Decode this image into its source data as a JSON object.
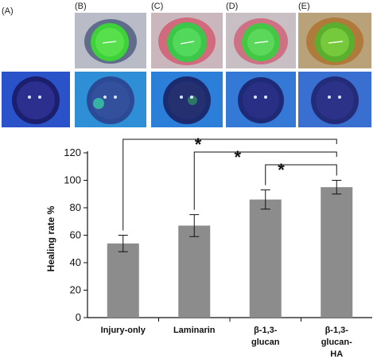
{
  "panels": [
    {
      "label": "(A)",
      "top_photo": false
    },
    {
      "label": "(B)",
      "top_photo": true
    },
    {
      "label": "(C)",
      "top_photo": true
    },
    {
      "label": "(D)",
      "top_photo": true
    },
    {
      "label": "(E)",
      "top_photo": true
    }
  ],
  "chart_data": {
    "type": "bar",
    "categories": [
      [
        "Injury-only"
      ],
      [
        "Laminarin"
      ],
      [
        "β-1,3-",
        "glucan"
      ],
      [
        "β-1,3-",
        "glucan-",
        "HA"
      ]
    ],
    "values": [
      54,
      67,
      86,
      95
    ],
    "errors": [
      6,
      8,
      7,
      5
    ],
    "ylabel": "Healing rate %",
    "ylim": [
      0,
      120
    ],
    "yticks": [
      0,
      20,
      40,
      60,
      80,
      100,
      120
    ],
    "bar_color": "#8c8c8c",
    "significance": [
      {
        "from": 0,
        "to": 3,
        "symbol": "*"
      },
      {
        "from": 1,
        "to": 3,
        "symbol": "*"
      },
      {
        "from": 2,
        "to": 3,
        "symbol": "*"
      }
    ]
  }
}
